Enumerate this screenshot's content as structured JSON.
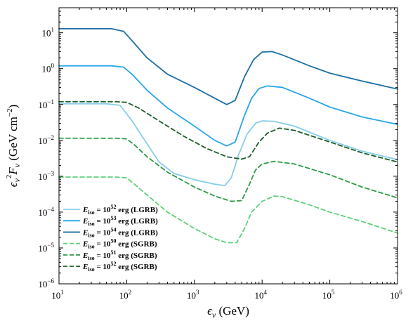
{
  "chart_data": {
    "type": "line",
    "title": "",
    "xlabel": "ϵν (GeV)",
    "ylabel": "ϵν²Fν (GeV cm⁻²)",
    "xscale": "log",
    "yscale": "log",
    "xlim": [
      10,
      1000000
    ],
    "ylim": [
      1e-06,
      50
    ],
    "x_ticks": [
      "10^1",
      "10^2",
      "10^3",
      "10^4",
      "10^5",
      "10^6"
    ],
    "y_ticks": [
      "10^-6",
      "10^-5",
      "10^-4",
      "10^-3",
      "10^-2",
      "10^-1",
      "10^0",
      "10^1"
    ],
    "grid": false,
    "legend_position": "bottom-left",
    "series": [
      {
        "name": "E_iso = 10^52 erg (LGRB)",
        "color": "#87cde8",
        "dash": "solid",
        "points": [
          [
            10,
            0.105
          ],
          [
            50,
            0.105
          ],
          [
            80,
            0.095
          ],
          [
            120,
            0.035
          ],
          [
            200,
            0.008
          ],
          [
            300,
            0.0025
          ],
          [
            500,
            0.0012
          ],
          [
            1000,
            0.0008
          ],
          [
            2000,
            0.0006
          ],
          [
            2800,
            0.00055
          ],
          [
            3500,
            0.0009
          ],
          [
            4500,
            0.004
          ],
          [
            6000,
            0.015
          ],
          [
            8000,
            0.03
          ],
          [
            10000,
            0.035
          ],
          [
            15000,
            0.034
          ],
          [
            30000,
            0.025
          ],
          [
            100000,
            0.01
          ],
          [
            300000,
            0.005
          ],
          [
            1000000,
            0.0029
          ]
        ]
      },
      {
        "name": "E_iso = 10^53 erg (LGRB)",
        "color": "#27a6e6",
        "dash": "solid",
        "points": [
          [
            10,
            1.2
          ],
          [
            60,
            1.2
          ],
          [
            90,
            1.1
          ],
          [
            120,
            0.7
          ],
          [
            200,
            0.25
          ],
          [
            400,
            0.08
          ],
          [
            1000,
            0.025
          ],
          [
            2000,
            0.01
          ],
          [
            3000,
            0.007
          ],
          [
            4000,
            0.009
          ],
          [
            5500,
            0.05
          ],
          [
            7000,
            0.15
          ],
          [
            9000,
            0.28
          ],
          [
            12000,
            0.33
          ],
          [
            20000,
            0.3
          ],
          [
            50000,
            0.15
          ],
          [
            100000,
            0.085
          ],
          [
            300000,
            0.045
          ],
          [
            1000000,
            0.028
          ]
        ]
      },
      {
        "name": "E_iso = 10^54 erg (LGRB)",
        "color": "#1b6fa5",
        "dash": "solid",
        "points": [
          [
            10,
            13
          ],
          [
            60,
            13
          ],
          [
            90,
            11
          ],
          [
            120,
            6
          ],
          [
            200,
            2
          ],
          [
            400,
            0.7
          ],
          [
            1000,
            0.3
          ],
          [
            2000,
            0.15
          ],
          [
            3000,
            0.1
          ],
          [
            4000,
            0.13
          ],
          [
            5500,
            0.6
          ],
          [
            7500,
            1.8
          ],
          [
            10000,
            2.9
          ],
          [
            14000,
            3.0
          ],
          [
            20000,
            2.4
          ],
          [
            50000,
            1.2
          ],
          [
            100000,
            0.75
          ],
          [
            300000,
            0.45
          ],
          [
            1000000,
            0.27
          ]
        ]
      },
      {
        "name": "E_iso = 10^50 erg (SGRB)",
        "color": "#5fd07a",
        "dash": "dashed",
        "points": [
          [
            10,
            0.00095
          ],
          [
            70,
            0.00095
          ],
          [
            100,
            0.0009
          ],
          [
            130,
            0.0006
          ],
          [
            200,
            0.0003
          ],
          [
            400,
            0.0001
          ],
          [
            1000,
            3.5e-05
          ],
          [
            2000,
            1.8e-05
          ],
          [
            3000,
            1.4e-05
          ],
          [
            4200,
            1.4e-05
          ],
          [
            5500,
            3.5e-05
          ],
          [
            7000,
            0.0001
          ],
          [
            10000,
            0.0002
          ],
          [
            15000,
            0.00028
          ],
          [
            20000,
            0.00027
          ],
          [
            50000,
            0.00016
          ],
          [
            100000,
            0.0001
          ],
          [
            300000,
            5.5e-05
          ],
          [
            1000000,
            2.6e-05
          ]
        ]
      },
      {
        "name": "E_iso = 10^51 erg (SGRB)",
        "color": "#2e9a46",
        "dash": "dashed",
        "points": [
          [
            10,
            0.0115
          ],
          [
            70,
            0.0115
          ],
          [
            100,
            0.011
          ],
          [
            130,
            0.0075
          ],
          [
            200,
            0.0035
          ],
          [
            400,
            0.0013
          ],
          [
            1000,
            0.0005
          ],
          [
            2000,
            0.00028
          ],
          [
            3500,
            0.0002
          ],
          [
            5000,
            0.00021
          ],
          [
            6500,
            0.0006
          ],
          [
            8000,
            0.0015
          ],
          [
            10000,
            0.0022
          ],
          [
            15000,
            0.0026
          ],
          [
            30000,
            0.0022
          ],
          [
            100000,
            0.0011
          ],
          [
            300000,
            0.0005
          ],
          [
            1000000,
            0.00025
          ]
        ]
      },
      {
        "name": "E_iso = 10^52 erg (SGRB)",
        "color": "#1c5e2b",
        "dash": "dashed",
        "points": [
          [
            10,
            0.12
          ],
          [
            70,
            0.12
          ],
          [
            100,
            0.115
          ],
          [
            150,
            0.08
          ],
          [
            300,
            0.035
          ],
          [
            700,
            0.013
          ],
          [
            1500,
            0.006
          ],
          [
            3000,
            0.0035
          ],
          [
            5000,
            0.003
          ],
          [
            6500,
            0.0035
          ],
          [
            9000,
            0.009
          ],
          [
            12000,
            0.016
          ],
          [
            18000,
            0.022
          ],
          [
            30000,
            0.019
          ],
          [
            100000,
            0.009
          ],
          [
            300000,
            0.0045
          ],
          [
            1000000,
            0.0025
          ]
        ]
      }
    ]
  }
}
